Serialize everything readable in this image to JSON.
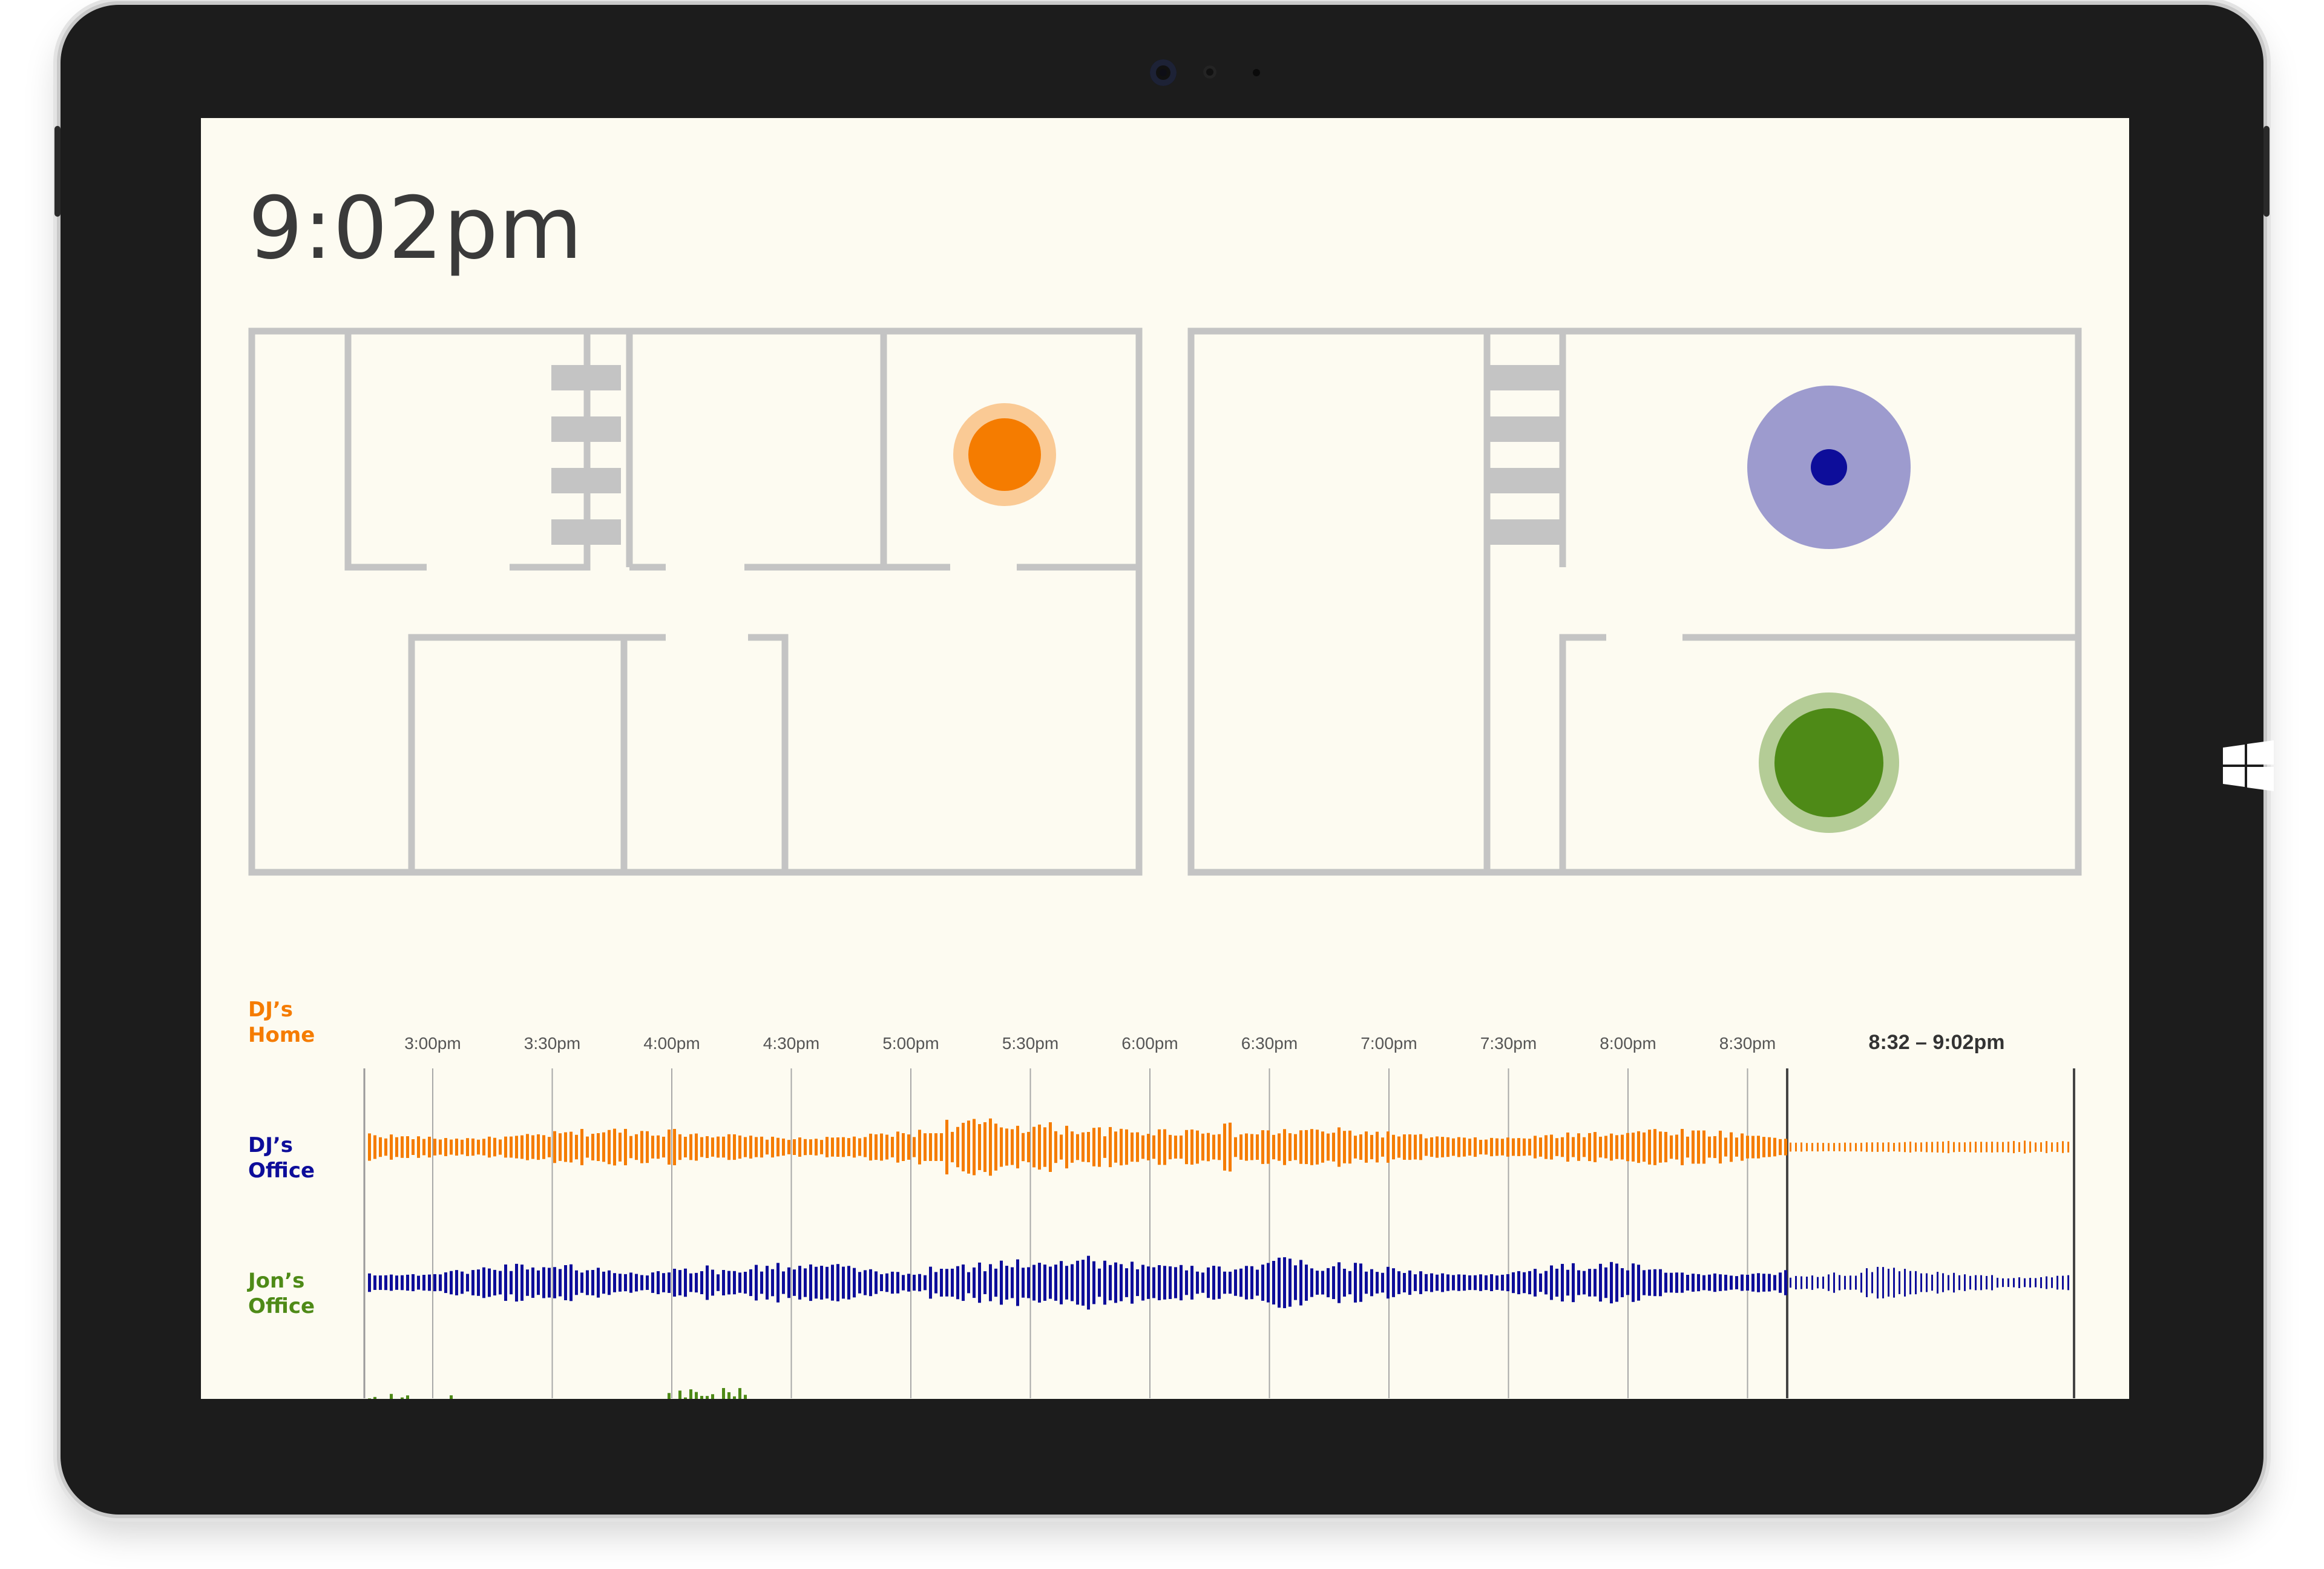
{
  "colors": {
    "bezel": "#1c1c1c",
    "screen_bg": "#fdfbf1",
    "wall": "#c4c4c4",
    "home": "#f57c00",
    "office": "#0d0d9a",
    "jon": "#4e8a17"
  },
  "header": {
    "time": "9:02pm"
  },
  "timeline": {
    "ticks": [
      "3:00pm",
      "3:30pm",
      "4:00pm",
      "4:30pm",
      "5:00pm",
      "5:30pm",
      "6:00pm",
      "6:30pm",
      "7:00pm",
      "7:30pm",
      "8:00pm",
      "8:30pm"
    ],
    "current_range": "8:32 – 9:02pm"
  },
  "tracks": [
    {
      "label_line1": "DJ’s",
      "label_line2": "Home",
      "color_key": "home"
    },
    {
      "label_line1": "DJ’s",
      "label_line2": "Office",
      "color_key": "office"
    },
    {
      "label_line1": "Jon’s",
      "label_line2": "Office",
      "color_key": "jon"
    }
  ],
  "icons": {
    "windows": "windows-logo-icon",
    "camera": "front-camera-icon"
  }
}
